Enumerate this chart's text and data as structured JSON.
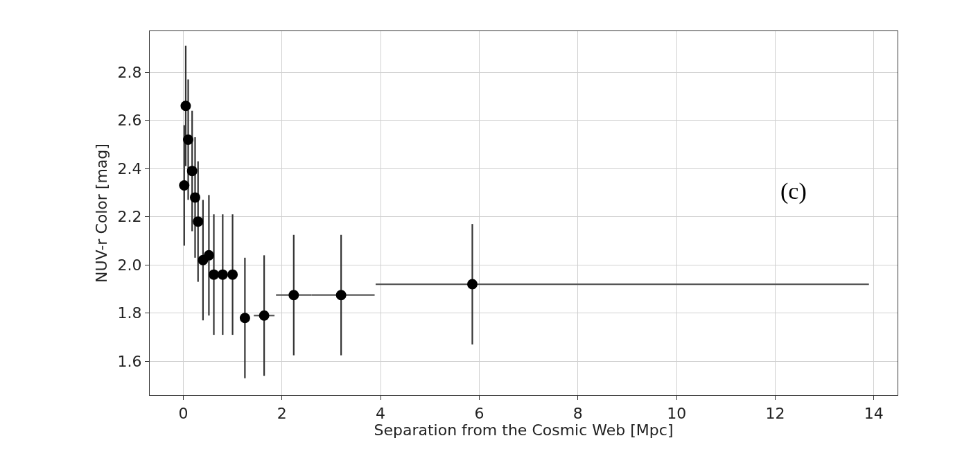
{
  "chart_data": {
    "type": "scatter",
    "xlabel": "Separation from the Cosmic Web [Mpc]",
    "ylabel": "NUV-r Color [mag]",
    "x": [
      0.02,
      0.05,
      0.1,
      0.18,
      0.24,
      0.3,
      0.4,
      0.52,
      0.62,
      0.8,
      1.0,
      1.25,
      1.64,
      2.24,
      3.2,
      5.86
    ],
    "series": [
      {
        "color": "#000000",
        "values": [
          2.33,
          2.66,
          2.52,
          2.39,
          2.28,
          2.18,
          2.02,
          2.04,
          1.96,
          1.96,
          1.96,
          1.78,
          1.79,
          1.875,
          1.875,
          1.92
        ],
        "errors": [
          0.25,
          0.25,
          0.25,
          0.25,
          0.25,
          0.25,
          0.25,
          0.25,
          0.25,
          0.25,
          0.25,
          0.25,
          0.25,
          0.25,
          0.25,
          0.25
        ],
        "xerrors": [
          null,
          null,
          null,
          null,
          null,
          null,
          null,
          null,
          null,
          null,
          null,
          [
            1.15,
            1.35
          ],
          [
            1.43,
            1.85
          ],
          [
            1.88,
            2.6
          ],
          [
            2.6,
            3.88
          ],
          [
            3.9,
            13.9
          ]
        ]
      }
    ],
    "marker": "circle",
    "grid": true,
    "annotations": [
      "(c)"
    ],
    "xlim": [
      -0.68,
      14.48
    ],
    "xticks": [
      0,
      2,
      4,
      6,
      8,
      10,
      12,
      14
    ],
    "ylim": [
      1.46,
      2.97
    ],
    "yticks": [
      1.6,
      1.8,
      {
        "value": 2,
        "label": "2.0"
      },
      2.2,
      2.4,
      2.6,
      2.8
    ]
  }
}
